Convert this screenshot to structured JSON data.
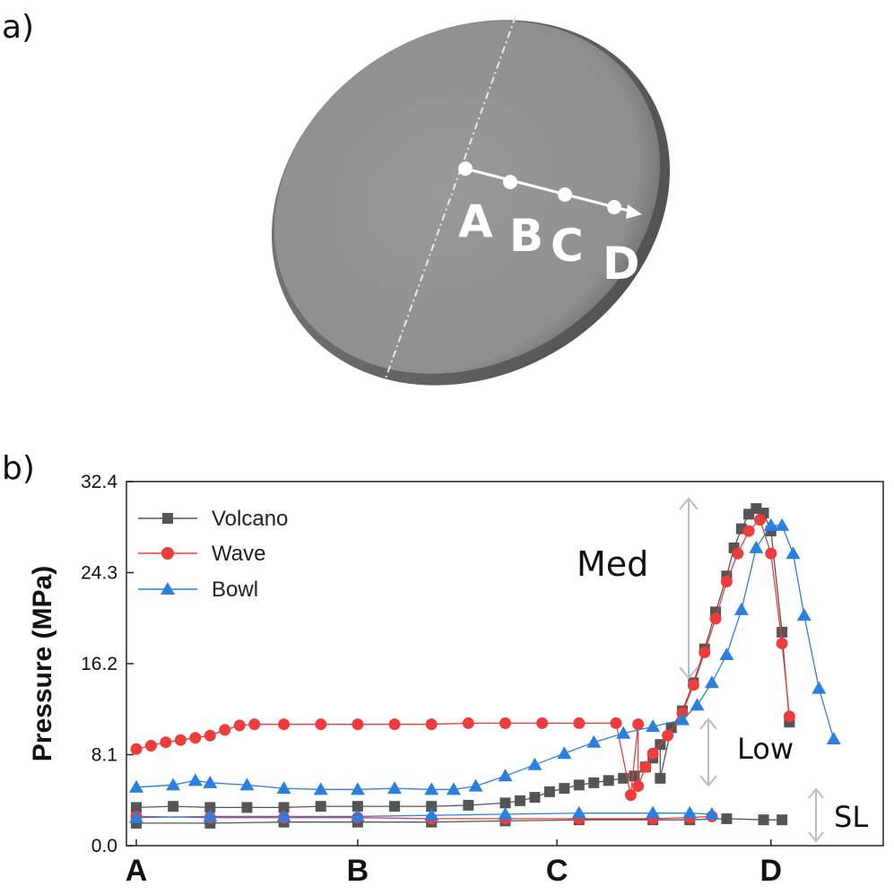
{
  "panel_a": {
    "label": "a)",
    "points": [
      "A",
      "B",
      "C",
      "D"
    ]
  },
  "panel_b": {
    "label": "b)",
    "regions": [
      "Med",
      "Low",
      "SL"
    ]
  },
  "chart_data": {
    "type": "scatter",
    "title": "",
    "xlabel": "",
    "ylabel": "Pressure (MPa)",
    "ylim": [
      0.0,
      32.4
    ],
    "yticks": [
      "0.0",
      "8.1",
      "16.2",
      "24.3",
      "32.4"
    ],
    "xticks": [
      "A",
      "B",
      "C",
      "D"
    ],
    "xlim": [
      0,
      1
    ],
    "grid": false,
    "legend": "top-left",
    "colors": {
      "Volcano": "#555555",
      "Wave": "#ee3b3b",
      "Bowl": "#2b7fe0"
    },
    "series": [
      {
        "name": "Volcano",
        "marker": "square",
        "color": "#555555",
        "points": [
          [
            0.0,
            3.4
          ],
          [
            0.05,
            3.5
          ],
          [
            0.1,
            3.4
          ],
          [
            0.15,
            3.4
          ],
          [
            0.2,
            3.4
          ],
          [
            0.25,
            3.5
          ],
          [
            0.3,
            3.5
          ],
          [
            0.35,
            3.5
          ],
          [
            0.4,
            3.5
          ],
          [
            0.45,
            3.6
          ],
          [
            0.5,
            3.8
          ],
          [
            0.52,
            4.0
          ],
          [
            0.54,
            4.3
          ],
          [
            0.56,
            4.8
          ],
          [
            0.58,
            5.1
          ],
          [
            0.6,
            5.4
          ],
          [
            0.62,
            5.6
          ],
          [
            0.64,
            5.8
          ],
          [
            0.66,
            6.0
          ],
          [
            0.675,
            6.2
          ],
          [
            0.69,
            7.0
          ],
          [
            0.7,
            7.8
          ],
          [
            0.71,
            9.0
          ],
          [
            0.725,
            10.5
          ],
          [
            0.74,
            12.0
          ],
          [
            0.755,
            14.5
          ],
          [
            0.77,
            17.5
          ],
          [
            0.785,
            20.8
          ],
          [
            0.8,
            24.0
          ],
          [
            0.81,
            26.5
          ],
          [
            0.82,
            28.2
          ],
          [
            0.83,
            29.5
          ],
          [
            0.84,
            30.0
          ],
          [
            0.85,
            29.6
          ],
          [
            0.86,
            28.0
          ],
          [
            0.875,
            19.0
          ],
          [
            0.885,
            11.0
          ],
          [
            0.71,
            6.0
          ]
        ]
      },
      {
        "name": "Volcano",
        "marker": "square",
        "color": "#555555",
        "points": [
          [
            0.0,
            2.0
          ],
          [
            0.1,
            2.0
          ],
          [
            0.2,
            2.1
          ],
          [
            0.3,
            2.1
          ],
          [
            0.4,
            2.1
          ],
          [
            0.5,
            2.2
          ],
          [
            0.6,
            2.3
          ],
          [
            0.7,
            2.3
          ],
          [
            0.75,
            2.3
          ],
          [
            0.8,
            2.4
          ],
          [
            0.85,
            2.3
          ],
          [
            0.875,
            2.3
          ]
        ]
      },
      {
        "name": "Wave",
        "marker": "circle",
        "color": "#ee3b3b",
        "points": [
          [
            0.0,
            8.6
          ],
          [
            0.02,
            8.9
          ],
          [
            0.04,
            9.2
          ],
          [
            0.06,
            9.4
          ],
          [
            0.08,
            9.6
          ],
          [
            0.1,
            9.8
          ],
          [
            0.12,
            10.3
          ],
          [
            0.14,
            10.7
          ],
          [
            0.16,
            10.8
          ],
          [
            0.2,
            10.8
          ],
          [
            0.25,
            10.8
          ],
          [
            0.3,
            10.8
          ],
          [
            0.35,
            10.8
          ],
          [
            0.4,
            10.8
          ],
          [
            0.45,
            10.9
          ],
          [
            0.5,
            10.9
          ],
          [
            0.55,
            10.9
          ],
          [
            0.6,
            10.9
          ],
          [
            0.65,
            10.9
          ],
          [
            0.68,
            10.8
          ],
          [
            0.69,
            7.0
          ],
          [
            0.7,
            8.2
          ],
          [
            0.72,
            9.8
          ],
          [
            0.74,
            11.8
          ],
          [
            0.755,
            14.3
          ],
          [
            0.77,
            17.2
          ],
          [
            0.785,
            20.2
          ],
          [
            0.8,
            23.5
          ],
          [
            0.815,
            26.0
          ],
          [
            0.83,
            28.0
          ],
          [
            0.845,
            29.0
          ],
          [
            0.86,
            26.0
          ],
          [
            0.875,
            18.0
          ],
          [
            0.885,
            11.5
          ],
          [
            0.68,
            5.3
          ],
          [
            0.67,
            4.5
          ]
        ]
      },
      {
        "name": "Wave",
        "marker": "circle",
        "color": "#ee3b3b",
        "points": [
          [
            0.0,
            2.6
          ],
          [
            0.1,
            2.5
          ],
          [
            0.2,
            2.5
          ],
          [
            0.3,
            2.5
          ],
          [
            0.4,
            2.4
          ],
          [
            0.5,
            2.4
          ],
          [
            0.6,
            2.4
          ],
          [
            0.7,
            2.4
          ],
          [
            0.75,
            2.5
          ],
          [
            0.78,
            2.6
          ]
        ]
      },
      {
        "name": "Bowl",
        "marker": "triangle",
        "color": "#2b7fe0",
        "points": [
          [
            0.0,
            5.2
          ],
          [
            0.05,
            5.4
          ],
          [
            0.08,
            5.8
          ],
          [
            0.1,
            5.6
          ],
          [
            0.15,
            5.4
          ],
          [
            0.2,
            5.1
          ],
          [
            0.25,
            5.0
          ],
          [
            0.3,
            5.0
          ],
          [
            0.35,
            5.1
          ],
          [
            0.4,
            5.0
          ],
          [
            0.43,
            5.0
          ],
          [
            0.46,
            5.3
          ],
          [
            0.5,
            6.2
          ],
          [
            0.54,
            7.2
          ],
          [
            0.58,
            8.2
          ],
          [
            0.62,
            9.2
          ],
          [
            0.66,
            10.0
          ],
          [
            0.7,
            10.6
          ],
          [
            0.74,
            11.2
          ],
          [
            0.76,
            12.5
          ],
          [
            0.78,
            14.5
          ],
          [
            0.8,
            17.0
          ],
          [
            0.82,
            21.0
          ],
          [
            0.84,
            26.5
          ],
          [
            0.86,
            28.5
          ],
          [
            0.875,
            28.5
          ],
          [
            0.89,
            26.0
          ],
          [
            0.905,
            20.5
          ],
          [
            0.925,
            14.0
          ],
          [
            0.945,
            9.5
          ]
        ]
      },
      {
        "name": "Bowl",
        "marker": "triangle",
        "color": "#2b7fe0",
        "points": [
          [
            0.0,
            2.5
          ],
          [
            0.1,
            2.6
          ],
          [
            0.2,
            2.6
          ],
          [
            0.3,
            2.6
          ],
          [
            0.4,
            2.7
          ],
          [
            0.5,
            2.8
          ],
          [
            0.6,
            2.9
          ],
          [
            0.7,
            2.9
          ],
          [
            0.75,
            2.9
          ],
          [
            0.78,
            2.8
          ]
        ]
      }
    ]
  }
}
